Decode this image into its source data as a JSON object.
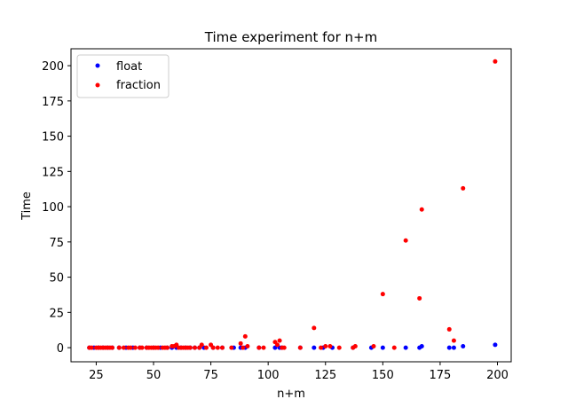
{
  "chart_data": {
    "type": "scatter",
    "title": "Time experiment for n+m",
    "xlabel": "n+m",
    "ylabel": "Time",
    "xlim": [
      14,
      206
    ],
    "ylim": [
      -10,
      212
    ],
    "xticks": [
      25,
      50,
      75,
      100,
      125,
      150,
      175,
      200
    ],
    "yticks": [
      0,
      25,
      50,
      75,
      100,
      125,
      150,
      175,
      200
    ],
    "legend_position": "top-left",
    "grid": false,
    "series": [
      {
        "name": "float",
        "color": "#0000ff",
        "points": [
          [
            22,
            0
          ],
          [
            24,
            0
          ],
          [
            26,
            0
          ],
          [
            28,
            0
          ],
          [
            30,
            0
          ],
          [
            32,
            0
          ],
          [
            35,
            0
          ],
          [
            38,
            0
          ],
          [
            41,
            0
          ],
          [
            44,
            0
          ],
          [
            47,
            0
          ],
          [
            50,
            0
          ],
          [
            53,
            0
          ],
          [
            56,
            0
          ],
          [
            58,
            0
          ],
          [
            60,
            0
          ],
          [
            62,
            0
          ],
          [
            64,
            0
          ],
          [
            66,
            0
          ],
          [
            68,
            0
          ],
          [
            70,
            0
          ],
          [
            72,
            0
          ],
          [
            76,
            0
          ],
          [
            80,
            0
          ],
          [
            85,
            0
          ],
          [
            88,
            0
          ],
          [
            90,
            0
          ],
          [
            96,
            0
          ],
          [
            103,
            0
          ],
          [
            105,
            0
          ],
          [
            106,
            0
          ],
          [
            114,
            0
          ],
          [
            120,
            0
          ],
          [
            124,
            0
          ],
          [
            128,
            0
          ],
          [
            137,
            0
          ],
          [
            145,
            0
          ],
          [
            150,
            0
          ],
          [
            160,
            0
          ],
          [
            166,
            0
          ],
          [
            167,
            1
          ],
          [
            179,
            0
          ],
          [
            181,
            0
          ],
          [
            185,
            1
          ],
          [
            199,
            2
          ]
        ]
      },
      {
        "name": "fraction",
        "color": "#ff0000",
        "points": [
          [
            22,
            0
          ],
          [
            23,
            0
          ],
          [
            25,
            0
          ],
          [
            26,
            0
          ],
          [
            27,
            0
          ],
          [
            28,
            0
          ],
          [
            29,
            0
          ],
          [
            30,
            0
          ],
          [
            31,
            0
          ],
          [
            32,
            0
          ],
          [
            35,
            0
          ],
          [
            37,
            0
          ],
          [
            39,
            0
          ],
          [
            40,
            0
          ],
          [
            42,
            0
          ],
          [
            44,
            0
          ],
          [
            45,
            0
          ],
          [
            47,
            0
          ],
          [
            48,
            0
          ],
          [
            49,
            0
          ],
          [
            50,
            0
          ],
          [
            51,
            0
          ],
          [
            52,
            0
          ],
          [
            54,
            0
          ],
          [
            55,
            0
          ],
          [
            56,
            0
          ],
          [
            58,
            1
          ],
          [
            59,
            1
          ],
          [
            60,
            2
          ],
          [
            61,
            0
          ],
          [
            62,
            0
          ],
          [
            63,
            0
          ],
          [
            64,
            0
          ],
          [
            65,
            0
          ],
          [
            66,
            0
          ],
          [
            68,
            0
          ],
          [
            70,
            0
          ],
          [
            71,
            2
          ],
          [
            73,
            0
          ],
          [
            75,
            2
          ],
          [
            76,
            0
          ],
          [
            78,
            0
          ],
          [
            80,
            0
          ],
          [
            84,
            0
          ],
          [
            88,
            3
          ],
          [
            89,
            0
          ],
          [
            90,
            8
          ],
          [
            91,
            1
          ],
          [
            96,
            0
          ],
          [
            98,
            0
          ],
          [
            103,
            4
          ],
          [
            104,
            2
          ],
          [
            105,
            5
          ],
          [
            106,
            0
          ],
          [
            107,
            0
          ],
          [
            114,
            0
          ],
          [
            120,
            14
          ],
          [
            123,
            0
          ],
          [
            125,
            1
          ],
          [
            127,
            1
          ],
          [
            131,
            0
          ],
          [
            137,
            0
          ],
          [
            138,
            1
          ],
          [
            146,
            1
          ],
          [
            150,
            38
          ],
          [
            155,
            0
          ],
          [
            160,
            76
          ],
          [
            166,
            35
          ],
          [
            167,
            98
          ],
          [
            179,
            13
          ],
          [
            181,
            5
          ],
          [
            185,
            113
          ],
          [
            199,
            203
          ]
        ]
      }
    ]
  }
}
